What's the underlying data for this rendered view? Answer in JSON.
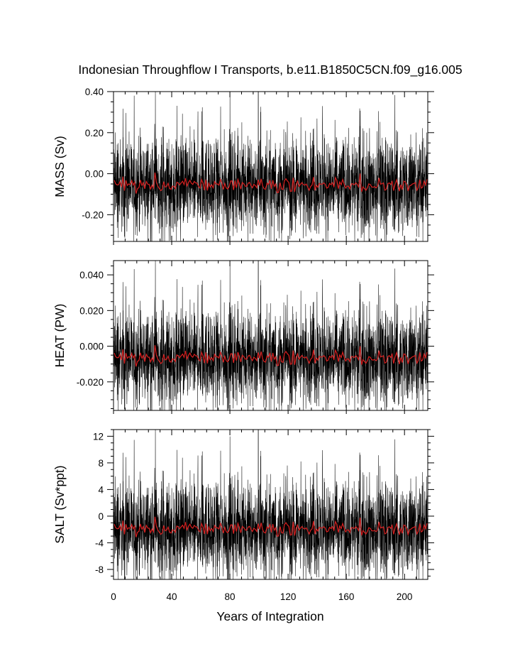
{
  "chart_data": {
    "type": "line",
    "title": "Indonesian Throughflow I Transports, b.e11.B1850C5CN.f09_g16.005",
    "xlabel": "Years of Integration",
    "xlim": [
      0,
      216
    ],
    "x_ticks": [
      0,
      40,
      80,
      120,
      160,
      200
    ],
    "x_tick_labels": [
      "0",
      "40",
      "80",
      "120",
      "160",
      "200"
    ],
    "grid": false,
    "legend": "none",
    "colors": {
      "monthly": "#000000",
      "annual": "#d62020"
    },
    "panels": [
      {
        "ylabel": "MASS (Sv)",
        "ylim": [
          -0.33,
          0.4
        ],
        "y_ticks": [
          -0.2,
          0,
          0.2,
          0.4
        ],
        "y_tick_labels": [
          "-0.20",
          "0.00",
          "0.20",
          "0.40"
        ],
        "series": [
          {
            "style": "monthly",
            "mean": -0.055,
            "amplitude": 0.14,
            "spike_max": 0.4,
            "spike_min": -0.33
          },
          {
            "style": "annual",
            "mean": -0.055,
            "amplitude": 0.03
          }
        ]
      },
      {
        "ylabel": "HEAT (PW)",
        "ylim": [
          -0.036,
          0.048
        ],
        "y_ticks": [
          -0.02,
          0,
          0.02,
          0.04
        ],
        "y_tick_labels": [
          "-0.020",
          "0.000",
          "0.020",
          "0.040"
        ],
        "series": [
          {
            "style": "monthly",
            "mean": -0.0065,
            "amplitude": 0.016,
            "spike_max": 0.048,
            "spike_min": -0.036
          },
          {
            "style": "annual",
            "mean": -0.0065,
            "amplitude": 0.0035
          }
        ]
      },
      {
        "ylabel": "SALT (Sv*ppt)",
        "ylim": [
          -9.5,
          13
        ],
        "y_ticks": [
          -8,
          -4,
          0,
          4,
          8,
          12
        ],
        "y_tick_labels": [
          "-8",
          "-4",
          "0",
          "4",
          "8",
          "12"
        ],
        "series": [
          {
            "style": "monthly",
            "mean": -1.9,
            "amplitude": 4.3,
            "spike_max": 13,
            "spike_min": -9.5
          },
          {
            "style": "annual",
            "mean": -1.9,
            "amplitude": 0.9
          }
        ]
      }
    ]
  }
}
